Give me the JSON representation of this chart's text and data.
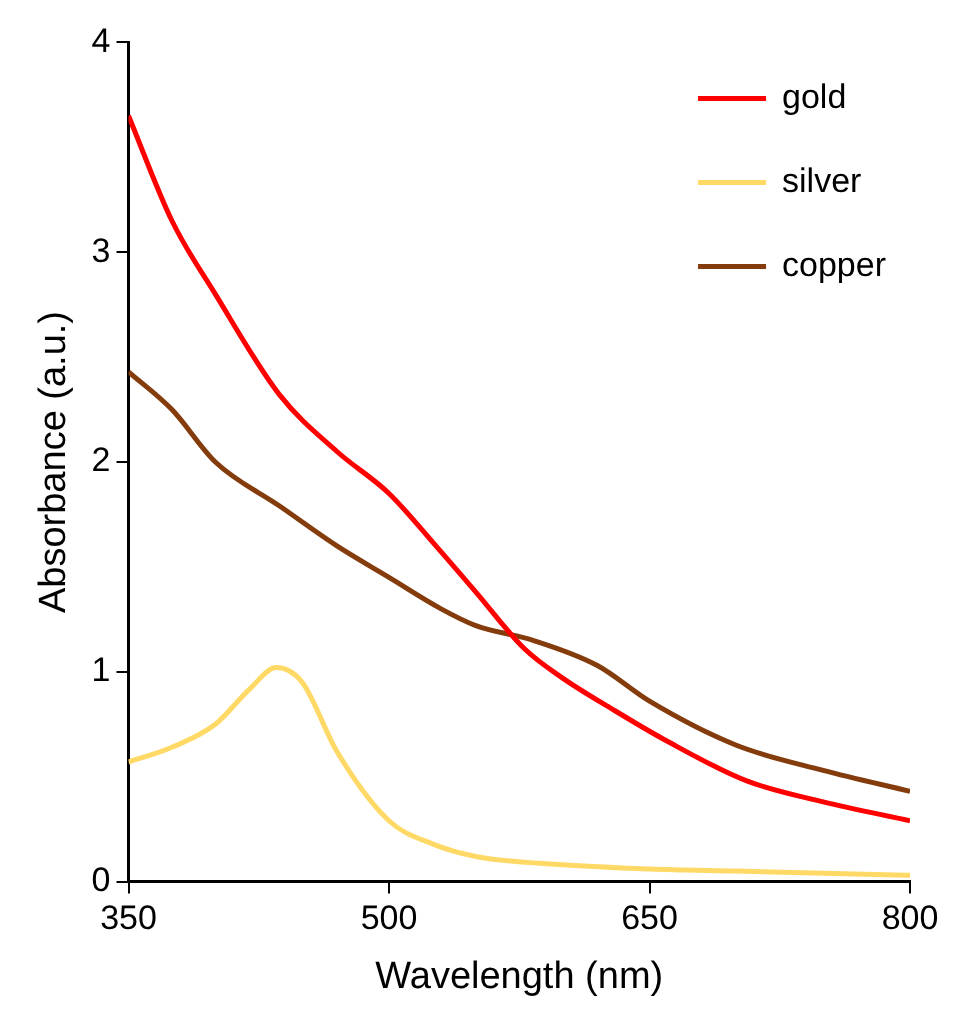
{
  "chart_data": {
    "type": "line",
    "xlabel": "Wavelength (nm)",
    "ylabel": "Absorbance (a.u.)",
    "xlim": [
      350,
      800
    ],
    "xticks": [
      350,
      500,
      650,
      800
    ],
    "ylim": [
      0,
      4
    ],
    "yticks": [
      0,
      1,
      2,
      3,
      4
    ],
    "grid": false,
    "legend": "top right",
    "marker": "none",
    "line_style": "solid",
    "series": [
      {
        "name": "gold",
        "color": "#ff0000",
        "x": [
          350,
          375,
          400,
          437,
          470,
          500,
          527,
          550,
          578,
          600,
          629,
          660,
          706,
          750,
          800
        ],
        "values": [
          3.65,
          3.15,
          2.8,
          2.32,
          2.05,
          1.85,
          1.6,
          1.38,
          1.11,
          0.97,
          0.82,
          0.67,
          0.48,
          0.38,
          0.29
        ]
      },
      {
        "name": "silver",
        "color": "#ffd966",
        "x": [
          350,
          375,
          400,
          420,
          435,
          450,
          470,
          500,
          525,
          550,
          600,
          650,
          700,
          800
        ],
        "values": [
          0.57,
          0.64,
          0.75,
          0.92,
          1.02,
          0.95,
          0.62,
          0.29,
          0.18,
          0.12,
          0.08,
          0.06,
          0.05,
          0.03
        ]
      },
      {
        "name": "copper",
        "color": "#843c0c",
        "x": [
          350,
          375,
          400,
          437,
          470,
          500,
          530,
          550,
          583,
          620,
          650,
          700,
          750,
          800
        ],
        "values": [
          2.43,
          2.25,
          2.0,
          1.79,
          1.6,
          1.45,
          1.3,
          1.22,
          1.15,
          1.03,
          0.86,
          0.65,
          0.53,
          0.43
        ]
      }
    ]
  }
}
